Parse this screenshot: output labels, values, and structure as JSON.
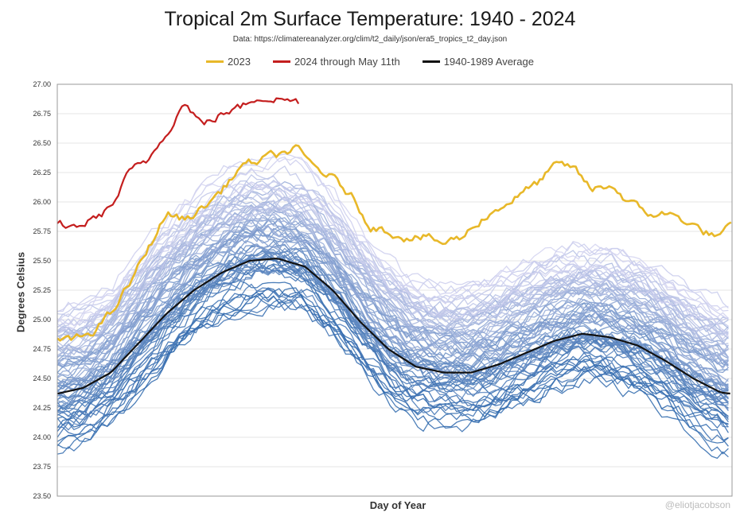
{
  "chart_data": {
    "type": "line",
    "title": "Tropical 2m Surface Temperature: 1940 - 2024",
    "subtitle": "Data: https://climatereanalyzer.org/clim/t2_daily/json/era5_tropics_t2_day.json",
    "xlabel": "Day of Year",
    "ylabel": "Degrees Celsius",
    "ylim": [
      23.5,
      27.0
    ],
    "xlim": [
      1,
      366
    ],
    "yticks": [
      "27.00",
      "26.75",
      "26.50",
      "26.25",
      "26.00",
      "25.75",
      "25.50",
      "25.25",
      "25.00",
      "24.75",
      "24.50",
      "24.25",
      "24.00",
      "23.75",
      "23.50"
    ],
    "legend_position": "top-center",
    "series": [
      {
        "name": "2023",
        "color": "#e8b829",
        "x": [
          1,
          10,
          20,
          30,
          40,
          50,
          60,
          70,
          80,
          90,
          100,
          110,
          120,
          130,
          140,
          150,
          160,
          170,
          180,
          190,
          200,
          210,
          220,
          230,
          240,
          250,
          260,
          270,
          280,
          290,
          300,
          310,
          320,
          330,
          340,
          350,
          360,
          366
        ],
        "values": [
          24.85,
          24.82,
          24.9,
          25.05,
          25.3,
          25.6,
          25.9,
          25.85,
          25.95,
          26.1,
          26.3,
          26.35,
          26.4,
          26.45,
          26.3,
          26.2,
          26.05,
          25.8,
          25.75,
          25.7,
          25.7,
          25.65,
          25.7,
          25.85,
          25.95,
          26.05,
          26.15,
          26.3,
          26.3,
          26.1,
          26.15,
          26.0,
          25.9,
          25.9,
          25.85,
          25.75,
          25.7,
          25.8
        ]
      },
      {
        "name": "2024 through May 11th",
        "color": "#c41e1e",
        "x": [
          1,
          10,
          20,
          30,
          40,
          50,
          60,
          70,
          80,
          90,
          100,
          110,
          120,
          132
        ],
        "values": [
          25.82,
          25.78,
          25.85,
          25.95,
          26.25,
          26.35,
          26.6,
          26.85,
          26.65,
          26.75,
          26.8,
          26.9,
          26.88,
          26.85
        ]
      },
      {
        "name": "1940-1989 Average",
        "color": "#111111",
        "x": [
          1,
          15,
          30,
          45,
          60,
          75,
          90,
          105,
          120,
          135,
          150,
          165,
          180,
          195,
          210,
          225,
          240,
          255,
          270,
          285,
          300,
          315,
          330,
          345,
          360,
          366
        ],
        "values": [
          24.37,
          24.42,
          24.55,
          24.8,
          25.05,
          25.25,
          25.4,
          25.5,
          25.52,
          25.45,
          25.25,
          24.98,
          24.75,
          24.6,
          24.55,
          24.55,
          24.62,
          24.72,
          24.82,
          24.88,
          24.85,
          24.78,
          24.65,
          24.5,
          24.38,
          24.37
        ]
      }
    ],
    "background_series_note": "Individual years 1940-2022 drawn as many blue lines (darker = older, lighter = recent)"
  },
  "watermark": "@eliotjacobson"
}
